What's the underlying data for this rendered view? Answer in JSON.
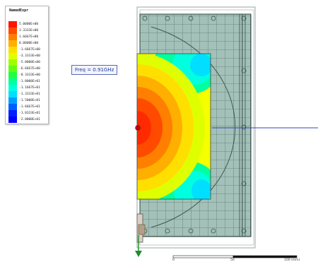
{
  "legend": {
    "title": "NamedExpr",
    "entries": [
      {
        "value": "5.0000E+00",
        "color": "#ff1500"
      },
      {
        "value": "3.3333E+00",
        "color": "#ff4a00"
      },
      {
        "value": "1.6667E+00",
        "color": "#ff7f00"
      },
      {
        "value": "0.0000E+00",
        "color": "#ffaf00"
      },
      {
        "value": "-1.6667E+00",
        "color": "#ffdf00"
      },
      {
        "value": "-3.3333E+00",
        "color": "#dfff00"
      },
      {
        "value": "-5.0000E+00",
        "color": "#9fff00"
      },
      {
        "value": "-6.6667E+00",
        "color": "#5fff10"
      },
      {
        "value": "-8.3333E+00",
        "color": "#20ff40"
      },
      {
        "value": "-1.0000E+01",
        "color": "#00ff9f"
      },
      {
        "value": "-1.1667E+01",
        "color": "#00ffdf"
      },
      {
        "value": "-1.3333E+01",
        "color": "#00dfff"
      },
      {
        "value": "-1.5000E+01",
        "color": "#009fff"
      },
      {
        "value": "-1.6667E+01",
        "color": "#005fff"
      },
      {
        "value": "-1.8333E+01",
        "color": "#0020ff"
      },
      {
        "value": "-2.0000E+01",
        "color": "#0000ff"
      }
    ]
  },
  "freq_label": "Freq = 0.91GHz",
  "scale_bar": {
    "ticks": [
      "0",
      "50",
      "100 (mm)"
    ]
  }
}
